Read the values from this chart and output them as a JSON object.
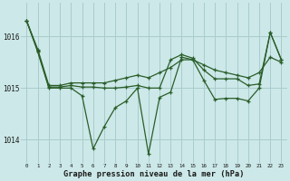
{
  "background_color": "#cce8e8",
  "grid_color": "#aacccc",
  "line_color": "#2a5e2a",
  "hours": [
    0,
    1,
    2,
    3,
    4,
    5,
    6,
    7,
    8,
    9,
    10,
    11,
    12,
    13,
    14,
    15,
    16,
    17,
    18,
    19,
    20,
    21,
    22,
    23
  ],
  "line_smooth": [
    1016.3,
    1015.75,
    1015.05,
    1015.05,
    1015.1,
    1015.1,
    1015.1,
    1015.1,
    1015.15,
    1015.2,
    1015.25,
    1015.2,
    1015.3,
    1015.4,
    1015.55,
    1015.55,
    1015.45,
    1015.35,
    1015.3,
    1015.25,
    1015.2,
    1015.3,
    1015.6,
    1015.5
  ],
  "line_mid": [
    1016.3,
    1015.72,
    1015.02,
    1015.02,
    1015.05,
    1015.02,
    1015.02,
    1015.0,
    1015.0,
    1015.02,
    1015.05,
    1015.0,
    1015.0,
    1015.55,
    1015.65,
    1015.58,
    1015.35,
    1015.18,
    1015.18,
    1015.18,
    1015.05,
    1015.08,
    1016.08,
    1015.55
  ],
  "line_jagged": [
    1016.3,
    1015.7,
    1015.0,
    1015.0,
    1015.0,
    1014.85,
    1013.82,
    1014.25,
    1014.62,
    1014.75,
    1015.0,
    1013.72,
    1014.82,
    1014.92,
    1015.6,
    1015.55,
    1015.15,
    1014.78,
    1014.8,
    1014.8,
    1014.75,
    1015.0,
    1016.08,
    1015.55
  ],
  "ylim": [
    1013.55,
    1016.65
  ],
  "yticks": [
    1014,
    1015,
    1016
  ],
  "xlabel": "Graphe pression niveau de la mer (hPa)",
  "xtick_labels": [
    "0",
    "1",
    "2",
    "3",
    "4",
    "5",
    "6",
    "7",
    "8",
    "9",
    "10",
    "11",
    "12",
    "13",
    "14",
    "15",
    "16",
    "17",
    "18",
    "19",
    "20",
    "21",
    "22",
    "23"
  ]
}
